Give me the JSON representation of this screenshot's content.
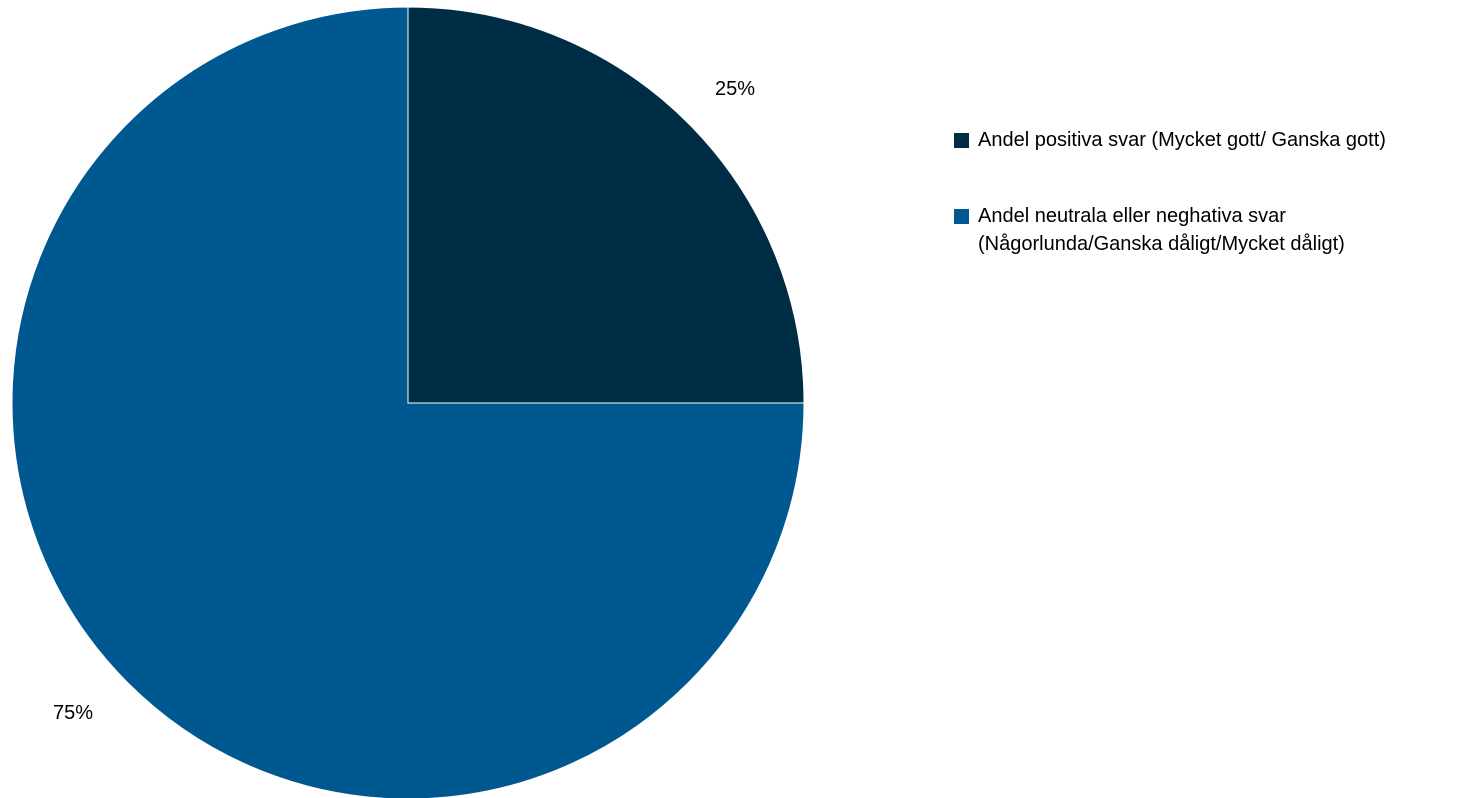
{
  "chart_data": {
    "type": "pie",
    "title": "",
    "start_angle_deg": 0,
    "direction": "clockwise",
    "legend_position": "right",
    "slices": [
      {
        "label": "Andel positiva svar (Mycket gott/ Ganska gott)",
        "value": 25,
        "data_label": "25%",
        "color": "#002d46"
      },
      {
        "label": "Andel neutrala eller neghativa svar (Någorlunda/Ganska dåligt/Mycket dåligt)",
        "value": 75,
        "data_label": "75%",
        "color": "#005891"
      }
    ]
  }
}
